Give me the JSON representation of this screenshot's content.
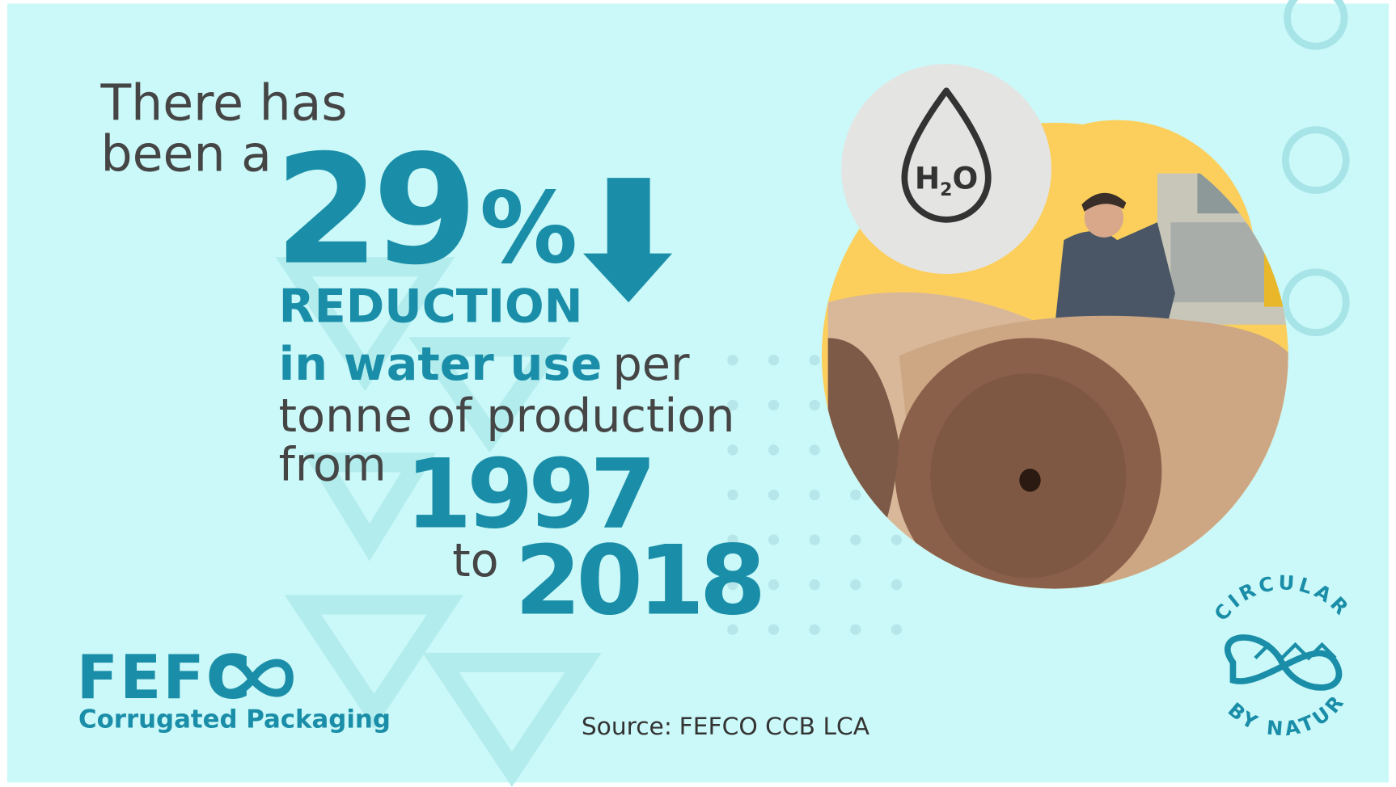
{
  "headline": {
    "intro": "There has",
    "intro2": "been a",
    "figure": "29",
    "figure_unit": "%",
    "reduction": "REDUCTION",
    "subject": "in water use",
    "per": "per",
    "line3": "tonne of production",
    "from": "from",
    "start_year": "1997",
    "to": "to",
    "end_year": "2018"
  },
  "logo": {
    "name": "FEFC",
    "tagline": "Corrugated Packaging"
  },
  "source": {
    "label": "Source:",
    "text": "FEFCO CCB LCA"
  },
  "icon": {
    "h": "H",
    "sub": "2",
    "o": "O"
  },
  "badge": {
    "top": "CIRCULAR",
    "bottom": "BY NATURE"
  }
}
